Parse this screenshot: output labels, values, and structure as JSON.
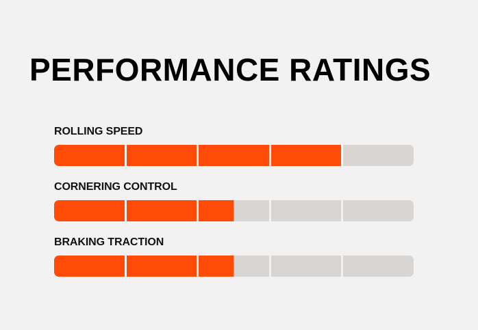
{
  "title": "PERFORMANCE RATINGS",
  "colors": {
    "background": "#f2f2f2",
    "filled": "#ff4a08",
    "empty": "#d9d5d3",
    "text": "#000000"
  },
  "ratings": [
    {
      "label": "ROLLING SPEED",
      "value": 4,
      "max": 5
    },
    {
      "label": "CORNERING CONTROL",
      "value": 2.5,
      "max": 5
    },
    {
      "label": "BRAKING TRACTION",
      "value": 2.5,
      "max": 5
    }
  ]
}
